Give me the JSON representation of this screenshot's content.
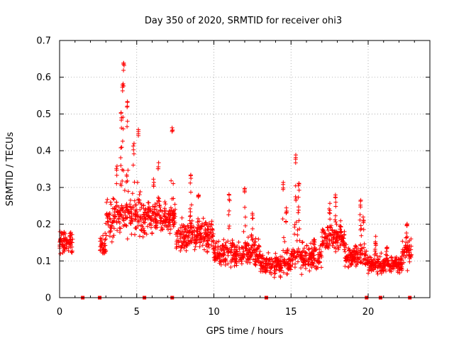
{
  "chart_data": {
    "type": "scatter",
    "title": "Day 350 of 2020, SRMTID for receiver ohi3",
    "xlabel": "GPS time / hours",
    "ylabel": "SRMTID / TECUs",
    "xlim": [
      0,
      24
    ],
    "ylim": [
      0,
      0.7
    ],
    "xticks": [
      0,
      5,
      10,
      15,
      20
    ],
    "yticks": [
      0,
      0.1,
      0.2,
      0.3,
      0.4,
      0.5,
      0.6,
      0.7
    ],
    "grid": true,
    "marker": "+",
    "color": "#ff0000",
    "zero_points_x": [
      1.5,
      2.6,
      5.5,
      7.3,
      13.4,
      19.9,
      20.8,
      22.7
    ],
    "segments": [
      {
        "start": 0.0,
        "end": 0.85,
        "base": 0.15,
        "amp": 0.05,
        "peaks": []
      },
      {
        "start": 2.6,
        "end": 3.0,
        "base": 0.14,
        "amp": 0.04,
        "peaks": []
      },
      {
        "start": 3.0,
        "end": 5.5,
        "base": 0.22,
        "amp": 0.08,
        "peaks": [
          [
            3.7,
            0.36
          ],
          [
            4.0,
            0.51
          ],
          [
            4.1,
            0.59
          ],
          [
            4.15,
            0.655
          ],
          [
            4.4,
            0.54
          ],
          [
            4.8,
            0.42
          ],
          [
            5.1,
            0.46
          ]
        ]
      },
      {
        "start": 5.5,
        "end": 7.5,
        "base": 0.22,
        "amp": 0.06,
        "peaks": [
          [
            6.1,
            0.33
          ],
          [
            6.4,
            0.37
          ],
          [
            7.3,
            0.47
          ]
        ]
      },
      {
        "start": 7.5,
        "end": 10.0,
        "base": 0.17,
        "amp": 0.06,
        "peaks": [
          [
            8.5,
            0.34
          ],
          [
            9.0,
            0.29
          ]
        ]
      },
      {
        "start": 10.0,
        "end": 13.0,
        "base": 0.12,
        "amp": 0.05,
        "peaks": [
          [
            11.0,
            0.29
          ],
          [
            12.0,
            0.3
          ],
          [
            12.5,
            0.23
          ]
        ]
      },
      {
        "start": 13.0,
        "end": 15.0,
        "base": 0.09,
        "amp": 0.04,
        "peaks": [
          [
            14.5,
            0.32
          ],
          [
            14.7,
            0.26
          ]
        ]
      },
      {
        "start": 15.0,
        "end": 17.0,
        "base": 0.11,
        "amp": 0.05,
        "peaks": [
          [
            15.3,
            0.39
          ],
          [
            15.5,
            0.32
          ],
          [
            16.5,
            0.17
          ]
        ]
      },
      {
        "start": 17.0,
        "end": 18.5,
        "base": 0.16,
        "amp": 0.05,
        "peaks": [
          [
            17.5,
            0.26
          ],
          [
            17.9,
            0.28
          ],
          [
            18.2,
            0.21
          ]
        ]
      },
      {
        "start": 18.5,
        "end": 20.0,
        "base": 0.11,
        "amp": 0.04,
        "peaks": [
          [
            19.5,
            0.27
          ],
          [
            19.7,
            0.23
          ]
        ]
      },
      {
        "start": 20.0,
        "end": 22.2,
        "base": 0.09,
        "amp": 0.035,
        "peaks": [
          [
            20.5,
            0.17
          ],
          [
            21.2,
            0.14
          ]
        ]
      },
      {
        "start": 22.2,
        "end": 22.8,
        "base": 0.12,
        "amp": 0.05,
        "peaks": [
          [
            22.5,
            0.21
          ]
        ]
      }
    ]
  }
}
